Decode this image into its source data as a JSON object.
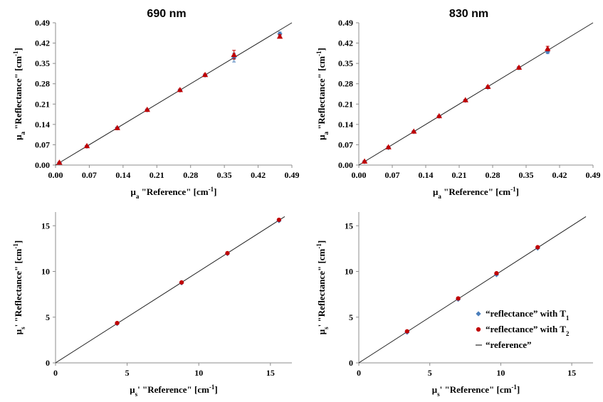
{
  "chart_data": [
    {
      "type": "scatter",
      "title": "690 nm",
      "xlabel": "μa \"Reference\" [cm-1]",
      "ylabel": "μa \"Reflectance\" [cm-1]",
      "x_axis": {
        "main": "μ",
        "sub": "a",
        "text": " \"Reference\" [cm",
        "sup": "-1",
        "end": "]"
      },
      "y_axis": {
        "main": "μ",
        "sub": "a",
        "text": " \"Reflectance\" [cm",
        "sup": "-1",
        "end": "]"
      },
      "xlim": [
        0,
        0.49
      ],
      "ylim": [
        0,
        0.49
      ],
      "xticks": [
        0,
        0.07,
        0.14,
        0.21,
        0.28,
        0.35,
        0.42,
        0.49
      ],
      "yticks": [
        0,
        0.07,
        0.14,
        0.21,
        0.28,
        0.35,
        0.42,
        0.49
      ],
      "tick_decimals": 2,
      "reference_line": [
        [
          0,
          0
        ],
        [
          0.49,
          0.49
        ]
      ],
      "series": [
        {
          "color": "#4a7ebb",
          "marker": "diamond",
          "x": [
            0.008,
            0.065,
            0.128,
            0.19,
            0.258,
            0.31,
            0.37,
            0.465
          ],
          "y": [
            0.008,
            0.065,
            0.128,
            0.19,
            0.258,
            0.31,
            0.37,
            0.452
          ],
          "err": [
            0.002,
            0.002,
            0.002,
            0.002,
            0.003,
            0.003,
            0.015,
            0.006
          ]
        },
        {
          "color": "#c00000",
          "marker": "triangle",
          "x": [
            0.008,
            0.065,
            0.128,
            0.19,
            0.258,
            0.31,
            0.37,
            0.465
          ],
          "y": [
            0.009,
            0.066,
            0.128,
            0.191,
            0.259,
            0.311,
            0.38,
            0.443
          ],
          "err": [
            0.002,
            0.002,
            0.002,
            0.002,
            0.003,
            0.003,
            0.015,
            0.006
          ]
        }
      ]
    },
    {
      "type": "scatter",
      "title": "830 nm",
      "xlabel": "μa \"Reference\" [cm-1]",
      "ylabel": "μa \"Reflectance\" [cm-1]",
      "x_axis": {
        "main": "μ",
        "sub": "a",
        "text": " \"Reference\" [cm",
        "sup": "-1",
        "end": "]"
      },
      "y_axis": {
        "main": "μ",
        "sub": "a",
        "text": " \"Reflectance\" [cm",
        "sup": "-1",
        "end": "]"
      },
      "xlim": [
        0,
        0.49
      ],
      "ylim": [
        0,
        0.49
      ],
      "xticks": [
        0,
        0.07,
        0.14,
        0.21,
        0.28,
        0.35,
        0.42,
        0.49
      ],
      "yticks": [
        0,
        0.07,
        0.14,
        0.21,
        0.28,
        0.35,
        0.42,
        0.49
      ],
      "tick_decimals": 2,
      "reference_line": [
        [
          0,
          0
        ],
        [
          0.49,
          0.49
        ]
      ],
      "series": [
        {
          "color": "#4a7ebb",
          "marker": "diamond",
          "x": [
            0.012,
            0.062,
            0.115,
            0.168,
            0.223,
            0.27,
            0.335,
            0.395
          ],
          "y": [
            0.012,
            0.06,
            0.115,
            0.168,
            0.223,
            0.268,
            0.335,
            0.39
          ],
          "err": [
            0.002,
            0.003,
            0.002,
            0.002,
            0.002,
            0.003,
            0.003,
            0.006
          ]
        },
        {
          "color": "#c00000",
          "marker": "triangle",
          "x": [
            0.012,
            0.062,
            0.115,
            0.168,
            0.223,
            0.27,
            0.335,
            0.395
          ],
          "y": [
            0.013,
            0.062,
            0.116,
            0.169,
            0.224,
            0.27,
            0.336,
            0.401
          ],
          "err": [
            0.002,
            0.003,
            0.002,
            0.002,
            0.002,
            0.003,
            0.003,
            0.008
          ]
        }
      ]
    },
    {
      "type": "scatter",
      "title": "",
      "xlabel": "μs' \"Reference\" [cm-1]",
      "ylabel": "μs' \"Reflectance\" [cm-1]",
      "x_axis": {
        "main": "μ",
        "sub": "s",
        "text": "' \"Reference\" [cm",
        "sup": "-1",
        "end": "]"
      },
      "y_axis": {
        "main": "μ",
        "sub": "s",
        "text": "' \"Reflectance\" [cm",
        "sup": "-1",
        "end": "]"
      },
      "xlim": [
        0,
        16.5
      ],
      "ylim": [
        0,
        16.5
      ],
      "xticks": [
        0,
        5,
        10,
        15
      ],
      "yticks": [
        0,
        5,
        10,
        15
      ],
      "tick_decimals": 0,
      "reference_line": [
        [
          0,
          0
        ],
        [
          16,
          16
        ]
      ],
      "series": [
        {
          "color": "#4a7ebb",
          "marker": "diamond",
          "x": [
            4.3,
            8.8,
            12.0,
            15.6
          ],
          "y": [
            4.3,
            8.75,
            11.95,
            15.55
          ],
          "err": [
            0,
            0,
            0,
            0
          ]
        },
        {
          "color": "#c00000",
          "marker": "circle",
          "x": [
            4.3,
            8.8,
            12.0,
            15.6
          ],
          "y": [
            4.35,
            8.8,
            12.0,
            15.65
          ],
          "err": [
            0,
            0,
            0,
            0
          ]
        }
      ]
    },
    {
      "type": "scatter",
      "title": "",
      "xlabel": "μs' \"Reference\" [cm-1]",
      "ylabel": "μs' \"Reflectance\" [cm-1]",
      "x_axis": {
        "main": "μ",
        "sub": "s",
        "text": "' \"Reference\" [cm",
        "sup": "-1",
        "end": "]"
      },
      "y_axis": {
        "main": "μ",
        "sub": "s",
        "text": "' \"Reflectance\" [cm",
        "sup": "-1",
        "end": "]"
      },
      "xlim": [
        0,
        16.5
      ],
      "ylim": [
        0,
        16.5
      ],
      "xticks": [
        0,
        5,
        10,
        15
      ],
      "yticks": [
        0,
        5,
        10,
        15
      ],
      "tick_decimals": 0,
      "reference_line": [
        [
          0,
          0
        ],
        [
          16,
          16
        ]
      ],
      "series": [
        {
          "color": "#4a7ebb",
          "marker": "diamond",
          "x": [
            3.4,
            7.0,
            9.7,
            12.6
          ],
          "y": [
            3.35,
            6.95,
            9.65,
            12.55
          ],
          "err": [
            0,
            0,
            0,
            0
          ]
        },
        {
          "color": "#c00000",
          "marker": "circle",
          "x": [
            3.4,
            7.0,
            9.7,
            12.6
          ],
          "y": [
            3.45,
            7.05,
            9.8,
            12.65
          ],
          "err": [
            0,
            0,
            0,
            0
          ]
        }
      ],
      "legend": {
        "placement": "bottom-right",
        "entries": [
          {
            "label": "“reflectance” with T",
            "sub": "1",
            "color": "#4a7ebb",
            "marker": "diamond"
          },
          {
            "label": "“reflectance” with T",
            "sub": "2",
            "color": "#c00000",
            "marker": "circle"
          },
          {
            "label": "“reference”",
            "sub": "",
            "color": "#000000",
            "marker": "line"
          }
        ]
      }
    }
  ]
}
